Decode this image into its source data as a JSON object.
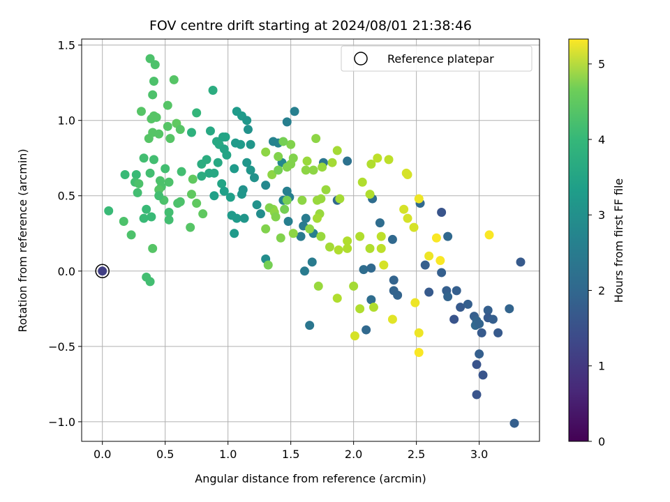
{
  "chart_data": {
    "type": "scatter",
    "title": "FOV centre drift starting at 2024/08/01 21:38:46",
    "xlabel": "Angular distance from reference (arcmin)",
    "ylabel": "Rotation from reference (arcmin)",
    "xlim": [
      -0.165,
      3.48
    ],
    "ylim": [
      -1.13,
      1.54
    ],
    "grid": true,
    "x_ticks": [
      0.0,
      0.5,
      1.0,
      1.5,
      2.0,
      2.5,
      3.0
    ],
    "x_tick_labels": [
      "0.0",
      "0.5",
      "1.0",
      "1.5",
      "2.0",
      "2.5",
      "3.0"
    ],
    "y_ticks": [
      -1.0,
      -0.5,
      0.0,
      0.5,
      1.0,
      1.5
    ],
    "y_tick_labels": [
      "−1.0",
      "−0.5",
      "0.0",
      "0.5",
      "1.0",
      "1.5"
    ],
    "legend": {
      "label": "Reference platepar",
      "location": "upper right",
      "marker": "hollow-circle"
    },
    "colorbar": {
      "label": "Hours from first FF file",
      "colormap": "viridis",
      "range": [
        0,
        5.33
      ],
      "ticks": [
        0,
        1,
        2,
        3,
        4,
        5
      ],
      "tick_labels": [
        "0",
        "1",
        "2",
        "3",
        "4",
        "5"
      ]
    },
    "reference_point": {
      "x": 0.0,
      "y": 0.0,
      "hours": 1.0
    },
    "points": [
      {
        "x": 0.38,
        "y": 1.41,
        "hours": 3.8
      },
      {
        "x": 0.42,
        "y": 1.37,
        "hours": 3.8
      },
      {
        "x": 0.57,
        "y": 1.27,
        "hours": 3.9
      },
      {
        "x": 0.41,
        "y": 1.26,
        "hours": 3.8
      },
      {
        "x": 0.4,
        "y": 1.17,
        "hours": 3.8
      },
      {
        "x": 0.31,
        "y": 1.06,
        "hours": 3.9
      },
      {
        "x": 0.52,
        "y": 1.1,
        "hours": 3.9
      },
      {
        "x": 0.41,
        "y": 1.03,
        "hours": 3.9
      },
      {
        "x": 0.43,
        "y": 1.02,
        "hours": 3.9
      },
      {
        "x": 0.39,
        "y": 1.01,
        "hours": 3.9
      },
      {
        "x": 0.59,
        "y": 0.98,
        "hours": 4.0
      },
      {
        "x": 0.52,
        "y": 0.96,
        "hours": 3.9
      },
      {
        "x": 0.62,
        "y": 0.94,
        "hours": 3.9
      },
      {
        "x": 0.4,
        "y": 0.92,
        "hours": 3.9
      },
      {
        "x": 0.45,
        "y": 0.91,
        "hours": 3.9
      },
      {
        "x": 0.37,
        "y": 0.88,
        "hours": 3.9
      },
      {
        "x": 0.54,
        "y": 0.88,
        "hours": 3.9
      },
      {
        "x": 0.33,
        "y": 0.75,
        "hours": 3.7
      },
      {
        "x": 0.41,
        "y": 0.74,
        "hours": 3.7
      },
      {
        "x": 0.5,
        "y": 0.68,
        "hours": 3.7
      },
      {
        "x": 0.63,
        "y": 0.66,
        "hours": 3.7
      },
      {
        "x": 0.18,
        "y": 0.64,
        "hours": 3.6
      },
      {
        "x": 0.27,
        "y": 0.64,
        "hours": 3.6
      },
      {
        "x": 0.38,
        "y": 0.65,
        "hours": 3.7
      },
      {
        "x": 0.46,
        "y": 0.6,
        "hours": 3.8
      },
      {
        "x": 0.26,
        "y": 0.59,
        "hours": 3.7
      },
      {
        "x": 0.29,
        "y": 0.58,
        "hours": 3.8
      },
      {
        "x": 0.47,
        "y": 0.56,
        "hours": 3.8
      },
      {
        "x": 0.53,
        "y": 0.59,
        "hours": 3.8
      },
      {
        "x": 0.45,
        "y": 0.54,
        "hours": 3.9
      },
      {
        "x": 0.28,
        "y": 0.52,
        "hours": 3.7
      },
      {
        "x": 0.71,
        "y": 0.51,
        "hours": 4.0
      },
      {
        "x": 0.49,
        "y": 0.47,
        "hours": 3.8
      },
      {
        "x": 0.45,
        "y": 0.5,
        "hours": 3.7
      },
      {
        "x": 0.62,
        "y": 0.46,
        "hours": 3.8
      },
      {
        "x": 0.6,
        "y": 0.45,
        "hours": 3.8
      },
      {
        "x": 0.75,
        "y": 0.45,
        "hours": 4.0
      },
      {
        "x": 0.53,
        "y": 0.39,
        "hours": 3.7
      },
      {
        "x": 0.35,
        "y": 0.41,
        "hours": 3.6
      },
      {
        "x": 0.39,
        "y": 0.36,
        "hours": 3.6
      },
      {
        "x": 0.33,
        "y": 0.35,
        "hours": 3.6
      },
      {
        "x": 0.53,
        "y": 0.34,
        "hours": 3.7
      },
      {
        "x": 0.8,
        "y": 0.38,
        "hours": 4.0
      },
      {
        "x": 0.05,
        "y": 0.4,
        "hours": 3.6
      },
      {
        "x": 0.17,
        "y": 0.33,
        "hours": 3.8
      },
      {
        "x": 0.7,
        "y": 0.29,
        "hours": 3.9
      },
      {
        "x": 0.23,
        "y": 0.24,
        "hours": 3.8
      },
      {
        "x": 0.4,
        "y": 0.15,
        "hours": 3.9
      },
      {
        "x": 0.35,
        "y": -0.04,
        "hours": 3.7
      },
      {
        "x": 0.38,
        "y": -0.07,
        "hours": 3.7
      },
      {
        "x": 0.72,
        "y": 0.61,
        "hours": 4.0
      },
      {
        "x": 0.75,
        "y": 1.05,
        "hours": 3.5
      },
      {
        "x": 0.71,
        "y": 0.92,
        "hours": 3.4
      },
      {
        "x": 0.88,
        "y": 1.2,
        "hours": 3.3
      },
      {
        "x": 0.86,
        "y": 0.93,
        "hours": 3.2
      },
      {
        "x": 0.91,
        "y": 0.86,
        "hours": 3.2
      },
      {
        "x": 0.96,
        "y": 0.89,
        "hours": 3.1
      },
      {
        "x": 0.98,
        "y": 0.89,
        "hours": 3.1
      },
      {
        "x": 0.93,
        "y": 0.84,
        "hours": 3.2
      },
      {
        "x": 0.97,
        "y": 0.81,
        "hours": 3.1
      },
      {
        "x": 0.99,
        "y": 0.77,
        "hours": 3.1
      },
      {
        "x": 0.79,
        "y": 0.71,
        "hours": 3.3
      },
      {
        "x": 0.83,
        "y": 0.74,
        "hours": 3.3
      },
      {
        "x": 0.92,
        "y": 0.72,
        "hours": 3.2
      },
      {
        "x": 0.85,
        "y": 0.65,
        "hours": 3.2
      },
      {
        "x": 0.89,
        "y": 0.65,
        "hours": 3.2
      },
      {
        "x": 0.79,
        "y": 0.63,
        "hours": 3.3
      },
      {
        "x": 0.95,
        "y": 0.58,
        "hours": 3.1
      },
      {
        "x": 0.97,
        "y": 0.53,
        "hours": 3.0
      },
      {
        "x": 1.02,
        "y": 0.49,
        "hours": 3.0
      },
      {
        "x": 0.89,
        "y": 0.5,
        "hours": 3.0
      },
      {
        "x": 1.07,
        "y": 1.06,
        "hours": 2.9
      },
      {
        "x": 1.11,
        "y": 1.03,
        "hours": 2.9
      },
      {
        "x": 1.15,
        "y": 1.0,
        "hours": 2.8
      },
      {
        "x": 1.16,
        "y": 0.94,
        "hours": 2.7
      },
      {
        "x": 1.06,
        "y": 0.85,
        "hours": 2.9
      },
      {
        "x": 1.1,
        "y": 0.84,
        "hours": 2.9
      },
      {
        "x": 1.18,
        "y": 0.84,
        "hours": 2.8
      },
      {
        "x": 1.05,
        "y": 0.68,
        "hours": 2.9
      },
      {
        "x": 1.15,
        "y": 0.72,
        "hours": 2.8
      },
      {
        "x": 1.18,
        "y": 0.67,
        "hours": 2.8
      },
      {
        "x": 1.21,
        "y": 0.62,
        "hours": 2.7
      },
      {
        "x": 1.12,
        "y": 0.54,
        "hours": 2.7
      },
      {
        "x": 1.11,
        "y": 0.51,
        "hours": 2.8
      },
      {
        "x": 1.03,
        "y": 0.37,
        "hours": 2.9
      },
      {
        "x": 1.07,
        "y": 0.35,
        "hours": 2.9
      },
      {
        "x": 1.13,
        "y": 0.35,
        "hours": 2.8
      },
      {
        "x": 1.05,
        "y": 0.25,
        "hours": 2.9
      },
      {
        "x": 1.23,
        "y": 0.44,
        "hours": 2.7
      },
      {
        "x": 1.26,
        "y": 0.38,
        "hours": 2.6
      },
      {
        "x": 1.3,
        "y": 0.57,
        "hours": 2.5
      },
      {
        "x": 1.3,
        "y": 0.08,
        "hours": 2.6
      },
      {
        "x": 1.36,
        "y": 0.86,
        "hours": 2.4
      },
      {
        "x": 1.43,
        "y": 0.72,
        "hours": 2.5
      },
      {
        "x": 1.4,
        "y": 0.85,
        "hours": 2.4
      },
      {
        "x": 1.47,
        "y": 0.99,
        "hours": 2.3
      },
      {
        "x": 1.53,
        "y": 1.06,
        "hours": 2.3
      },
      {
        "x": 1.44,
        "y": 0.47,
        "hours": 2.4
      },
      {
        "x": 1.47,
        "y": 0.53,
        "hours": 2.3
      },
      {
        "x": 1.49,
        "y": 0.49,
        "hours": 2.3
      },
      {
        "x": 1.48,
        "y": 0.33,
        "hours": 2.3
      },
      {
        "x": 1.58,
        "y": 0.23,
        "hours": 2.2
      },
      {
        "x": 1.6,
        "y": 0.3,
        "hours": 2.2
      },
      {
        "x": 1.62,
        "y": 0.35,
        "hours": 2.2
      },
      {
        "x": 1.61,
        "y": 0.0,
        "hours": 2.2
      },
      {
        "x": 1.67,
        "y": 0.06,
        "hours": 2.2
      },
      {
        "x": 1.68,
        "y": 0.25,
        "hours": 2.3
      },
      {
        "x": 1.65,
        "y": -0.36,
        "hours": 2.1
      },
      {
        "x": 1.76,
        "y": 0.72,
        "hours": 2.1
      },
      {
        "x": 1.95,
        "y": 0.73,
        "hours": 2.0
      },
      {
        "x": 1.87,
        "y": 0.47,
        "hours": 1.8
      },
      {
        "x": 2.15,
        "y": 0.48,
        "hours": 1.9
      },
      {
        "x": 2.21,
        "y": 0.32,
        "hours": 1.9
      },
      {
        "x": 2.31,
        "y": 0.21,
        "hours": 1.8
      },
      {
        "x": 2.08,
        "y": 0.01,
        "hours": 1.9
      },
      {
        "x": 2.14,
        "y": 0.02,
        "hours": 1.8
      },
      {
        "x": 2.32,
        "y": -0.06,
        "hours": 1.7
      },
      {
        "x": 2.32,
        "y": -0.13,
        "hours": 1.7
      },
      {
        "x": 2.35,
        "y": -0.16,
        "hours": 1.7
      },
      {
        "x": 2.14,
        "y": -0.19,
        "hours": 1.9
      },
      {
        "x": 2.1,
        "y": -0.39,
        "hours": 1.8
      },
      {
        "x": 2.53,
        "y": 0.45,
        "hours": 1.8
      },
      {
        "x": 2.57,
        "y": 0.04,
        "hours": 1.6
      },
      {
        "x": 2.6,
        "y": -0.14,
        "hours": 1.5
      },
      {
        "x": 2.7,
        "y": 0.39,
        "hours": 1.4
      },
      {
        "x": 2.7,
        "y": -0.01,
        "hours": 1.6
      },
      {
        "x": 2.75,
        "y": 0.23,
        "hours": 1.8
      },
      {
        "x": 2.74,
        "y": -0.13,
        "hours": 1.6
      },
      {
        "x": 2.75,
        "y": -0.17,
        "hours": 1.7
      },
      {
        "x": 2.82,
        "y": -0.13,
        "hours": 1.6
      },
      {
        "x": 2.8,
        "y": -0.32,
        "hours": 1.4
      },
      {
        "x": 2.85,
        "y": -0.24,
        "hours": 1.5
      },
      {
        "x": 2.91,
        "y": -0.22,
        "hours": 1.6
      },
      {
        "x": 2.96,
        "y": -0.3,
        "hours": 1.6
      },
      {
        "x": 2.98,
        "y": -0.33,
        "hours": 1.7
      },
      {
        "x": 2.97,
        "y": -0.36,
        "hours": 1.8
      },
      {
        "x": 3.0,
        "y": -0.35,
        "hours": 1.7
      },
      {
        "x": 3.02,
        "y": -0.41,
        "hours": 1.5
      },
      {
        "x": 3.07,
        "y": -0.26,
        "hours": 1.6
      },
      {
        "x": 3.07,
        "y": -0.31,
        "hours": 1.5
      },
      {
        "x": 3.11,
        "y": -0.32,
        "hours": 1.6
      },
      {
        "x": 3.15,
        "y": -0.41,
        "hours": 1.5
      },
      {
        "x": 3.24,
        "y": -0.25,
        "hours": 1.7
      },
      {
        "x": 3.0,
        "y": -0.55,
        "hours": 1.6
      },
      {
        "x": 2.98,
        "y": -0.62,
        "hours": 1.4
      },
      {
        "x": 3.03,
        "y": -0.69,
        "hours": 1.4
      },
      {
        "x": 2.98,
        "y": -0.82,
        "hours": 1.4
      },
      {
        "x": 3.28,
        "y": -1.01,
        "hours": 1.6
      },
      {
        "x": 3.33,
        "y": 0.06,
        "hours": 1.5
      },
      {
        "x": 1.32,
        "y": 0.04,
        "hours": 4.2
      },
      {
        "x": 1.3,
        "y": 0.28,
        "hours": 4.3
      },
      {
        "x": 1.36,
        "y": 0.41,
        "hours": 4.4
      },
      {
        "x": 1.33,
        "y": 0.42,
        "hours": 4.3
      },
      {
        "x": 1.37,
        "y": 0.39,
        "hours": 4.4
      },
      {
        "x": 1.38,
        "y": 0.36,
        "hours": 4.3
      },
      {
        "x": 1.35,
        "y": 0.64,
        "hours": 4.4
      },
      {
        "x": 1.3,
        "y": 0.79,
        "hours": 4.4
      },
      {
        "x": 1.4,
        "y": 0.67,
        "hours": 4.2
      },
      {
        "x": 1.4,
        "y": 0.76,
        "hours": 4.3
      },
      {
        "x": 1.42,
        "y": 0.22,
        "hours": 4.3
      },
      {
        "x": 1.45,
        "y": 0.41,
        "hours": 4.2
      },
      {
        "x": 1.47,
        "y": 0.47,
        "hours": 4.2
      },
      {
        "x": 1.47,
        "y": 0.69,
        "hours": 4.3
      },
      {
        "x": 1.5,
        "y": 0.71,
        "hours": 4.3
      },
      {
        "x": 1.52,
        "y": 0.75,
        "hours": 4.3
      },
      {
        "x": 1.5,
        "y": 0.84,
        "hours": 4.3
      },
      {
        "x": 1.44,
        "y": 0.86,
        "hours": 4.2
      },
      {
        "x": 1.52,
        "y": 0.25,
        "hours": 4.4
      },
      {
        "x": 1.59,
        "y": 0.47,
        "hours": 4.4
      },
      {
        "x": 1.62,
        "y": 0.67,
        "hours": 4.4
      },
      {
        "x": 1.63,
        "y": 0.73,
        "hours": 4.5
      },
      {
        "x": 1.65,
        "y": 0.28,
        "hours": 4.4
      },
      {
        "x": 1.68,
        "y": 0.67,
        "hours": 4.4
      },
      {
        "x": 1.7,
        "y": 0.88,
        "hours": 4.4
      },
      {
        "x": 1.71,
        "y": 0.47,
        "hours": 4.5
      },
      {
        "x": 1.73,
        "y": 0.38,
        "hours": 4.5
      },
      {
        "x": 1.71,
        "y": 0.35,
        "hours": 4.6
      },
      {
        "x": 1.74,
        "y": 0.48,
        "hours": 4.5
      },
      {
        "x": 1.75,
        "y": 0.69,
        "hours": 4.5
      },
      {
        "x": 1.74,
        "y": 0.23,
        "hours": 4.5
      },
      {
        "x": 1.72,
        "y": -0.1,
        "hours": 4.5
      },
      {
        "x": 1.78,
        "y": 0.54,
        "hours": 4.5
      },
      {
        "x": 1.81,
        "y": 0.16,
        "hours": 4.6
      },
      {
        "x": 1.83,
        "y": 0.72,
        "hours": 4.6
      },
      {
        "x": 1.87,
        "y": 0.8,
        "hours": 4.6
      },
      {
        "x": 1.88,
        "y": 0.14,
        "hours": 4.7
      },
      {
        "x": 1.89,
        "y": 0.48,
        "hours": 4.6
      },
      {
        "x": 1.87,
        "y": -0.18,
        "hours": 4.7
      },
      {
        "x": 1.95,
        "y": 0.2,
        "hours": 4.7
      },
      {
        "x": 1.95,
        "y": 0.15,
        "hours": 4.7
      },
      {
        "x": 2.0,
        "y": -0.1,
        "hours": 4.6
      },
      {
        "x": 2.05,
        "y": 0.23,
        "hours": 4.7
      },
      {
        "x": 2.05,
        "y": -0.25,
        "hours": 4.7
      },
      {
        "x": 2.07,
        "y": 0.59,
        "hours": 4.7
      },
      {
        "x": 2.13,
        "y": 0.51,
        "hours": 4.7
      },
      {
        "x": 2.14,
        "y": 0.71,
        "hours": 4.7
      },
      {
        "x": 2.13,
        "y": 0.15,
        "hours": 4.7
      },
      {
        "x": 2.16,
        "y": -0.24,
        "hours": 4.7
      },
      {
        "x": 2.19,
        "y": 0.75,
        "hours": 4.8
      },
      {
        "x": 2.22,
        "y": 0.23,
        "hours": 4.8
      },
      {
        "x": 2.28,
        "y": 0.74,
        "hours": 4.8
      },
      {
        "x": 2.22,
        "y": 0.15,
        "hours": 4.8
      },
      {
        "x": 2.42,
        "y": 0.65,
        "hours": 5.0
      },
      {
        "x": 2.43,
        "y": 0.64,
        "hours": 5.0
      },
      {
        "x": 2.4,
        "y": 0.41,
        "hours": 5.0
      },
      {
        "x": 2.43,
        "y": 0.35,
        "hours": 5.0
      },
      {
        "x": 2.48,
        "y": 0.29,
        "hours": 5.0
      },
      {
        "x": 2.24,
        "y": 0.04,
        "hours": 5.0
      },
      {
        "x": 2.01,
        "y": -0.43,
        "hours": 5.0
      },
      {
        "x": 2.31,
        "y": -0.32,
        "hours": 5.1
      },
      {
        "x": 2.49,
        "y": -0.21,
        "hours": 5.2
      },
      {
        "x": 2.52,
        "y": 0.48,
        "hours": 5.2
      },
      {
        "x": 2.52,
        "y": -0.41,
        "hours": 5.2
      },
      {
        "x": 2.52,
        "y": -0.54,
        "hours": 5.3
      },
      {
        "x": 2.6,
        "y": 0.1,
        "hours": 5.2
      },
      {
        "x": 2.66,
        "y": 0.22,
        "hours": 5.3
      },
      {
        "x": 2.69,
        "y": 0.07,
        "hours": 5.3
      },
      {
        "x": 3.08,
        "y": 0.24,
        "hours": 5.3
      }
    ]
  }
}
